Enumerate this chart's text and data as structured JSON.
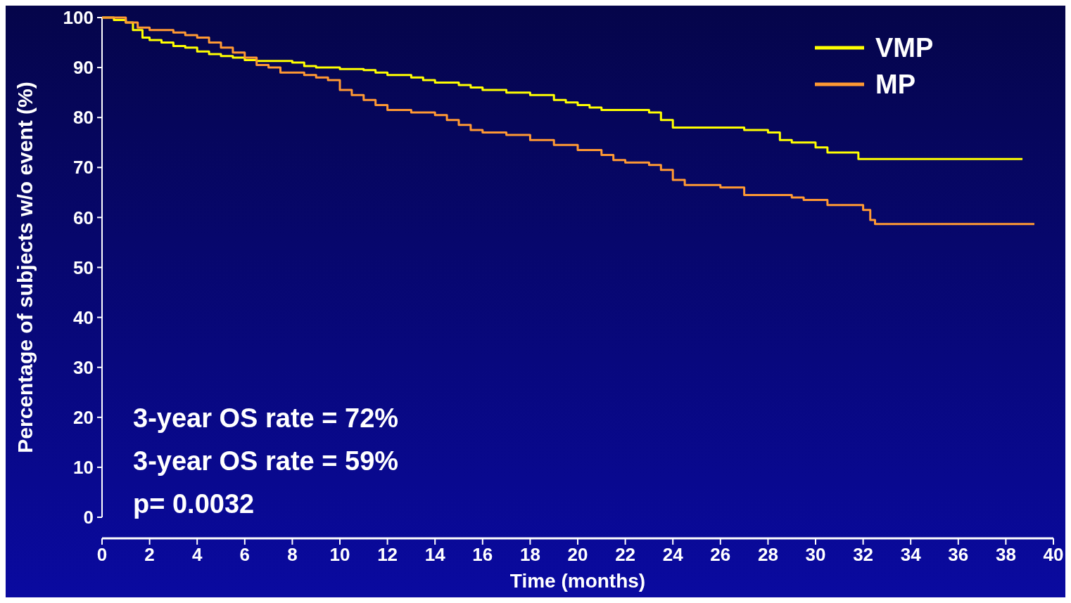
{
  "chart_data": {
    "type": "step",
    "xlabel": "Time (months)",
    "ylabel": "Percentage of subjects w/o event  (%)",
    "xlim": [
      0,
      40
    ],
    "ylim": [
      0,
      100
    ],
    "xticks": [
      0,
      2,
      4,
      6,
      8,
      10,
      12,
      14,
      16,
      18,
      20,
      22,
      24,
      26,
      28,
      30,
      32,
      34,
      36,
      38,
      40
    ],
    "yticks": [
      0,
      10,
      20,
      30,
      40,
      50,
      60,
      70,
      80,
      90,
      100
    ],
    "grid": false,
    "legend": "top right",
    "line_style": "solid",
    "annotations": [
      "3-year OS rate = 72%",
      "3-year OS rate = 59%",
      "p= 0.0032"
    ],
    "series": [
      {
        "name": "VMP",
        "color": "#ffff00",
        "x": [
          0,
          0.5,
          1,
          1.3,
          1.7,
          2,
          2.5,
          3,
          3.5,
          4,
          4.5,
          5,
          5.5,
          6,
          6.5,
          8,
          8.5,
          9,
          10,
          11,
          11.5,
          12,
          13,
          13.5,
          14,
          15,
          15.5,
          16,
          17,
          18,
          19,
          19.5,
          20,
          20.5,
          21,
          23,
          23.5,
          24,
          27,
          28,
          28.5,
          29,
          30,
          30.5,
          31.8,
          38.7
        ],
        "values": [
          100,
          99.5,
          99,
          97.5,
          96,
          95.5,
          95,
          94.3,
          94,
          93.2,
          92.7,
          92.3,
          92,
          91.5,
          91.3,
          91,
          90.3,
          90,
          89.7,
          89.5,
          89,
          88.5,
          88,
          87.5,
          87,
          86.5,
          86,
          85.5,
          85,
          84.5,
          83.5,
          83,
          82.5,
          82,
          81.5,
          81,
          79.5,
          78,
          77.5,
          77,
          75.5,
          75,
          74,
          73,
          71.7,
          71.7
        ]
      },
      {
        "name": "MP",
        "color": "#ff9933",
        "x": [
          0,
          1,
          1.5,
          2,
          3,
          3.5,
          4,
          4.5,
          5,
          5.5,
          6,
          6.5,
          7,
          7.5,
          8.5,
          9,
          9.5,
          10,
          10.5,
          11,
          11.5,
          12,
          13,
          14,
          14.5,
          15,
          15.5,
          16,
          17,
          18,
          19,
          20,
          21,
          21.5,
          22,
          23,
          23.5,
          24,
          24.5,
          26,
          27,
          29,
          29.5,
          30.5,
          32,
          32.3,
          32.5,
          39.2
        ],
        "values": [
          100,
          99,
          98,
          97.5,
          97,
          96.5,
          96,
          95,
          94,
          93,
          92,
          90.5,
          90,
          89,
          88.5,
          88,
          87.5,
          85.5,
          84.5,
          83.5,
          82.5,
          81.5,
          81,
          80.5,
          79.5,
          78.5,
          77.5,
          77,
          76.5,
          75.5,
          74.5,
          73.5,
          72.5,
          71.5,
          71,
          70.5,
          69.5,
          67.5,
          66.5,
          66,
          64.5,
          64,
          63.5,
          62.5,
          61.5,
          59.5,
          58.7,
          58.7
        ]
      }
    ]
  }
}
